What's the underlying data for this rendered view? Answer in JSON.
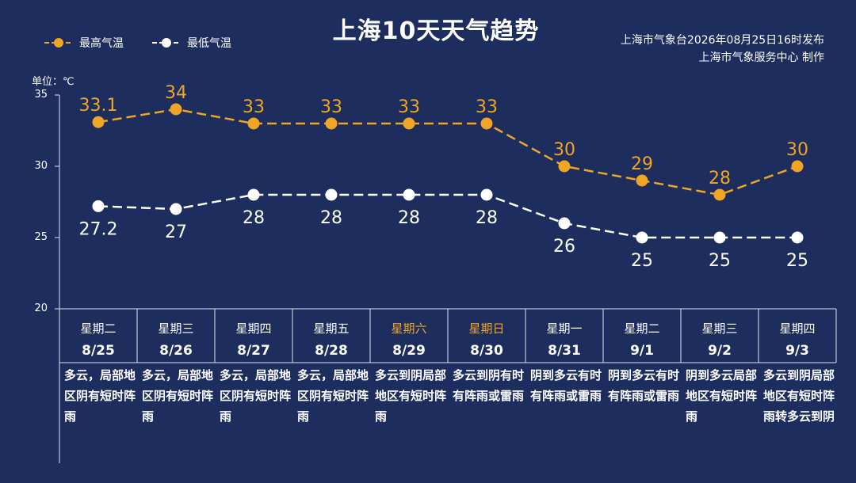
{
  "title": "上海10天天气趋势",
  "legend": {
    "high_label": "最高气温",
    "low_label": "最低气温"
  },
  "source": {
    "line1": "上海市气象台2026年08月25日16时发布",
    "line2": "上海市气象服务中心 制作"
  },
  "colors": {
    "background": "#1c2d5e",
    "high": "#f0a524",
    "low": "#ffffff",
    "weekend_text": "#f0a524"
  },
  "chart_data": {
    "type": "line",
    "unit_label": "单位：℃",
    "ylim": [
      20,
      35
    ],
    "yticks": [
      "35",
      "30",
      "25",
      "20"
    ],
    "categories": [
      "8/25",
      "8/26",
      "8/27",
      "8/28",
      "8/29",
      "8/30",
      "8/31",
      "9/1",
      "9/2",
      "9/3"
    ],
    "series": [
      {
        "name": "最高气温",
        "values": [
          33.1,
          34,
          33,
          33,
          33,
          33,
          30,
          29,
          28,
          30
        ],
        "labels": [
          "33.1",
          "34",
          "33",
          "33",
          "33",
          "33",
          "30",
          "29",
          "28",
          "30"
        ]
      },
      {
        "name": "最低气温",
        "values": [
          27.2,
          27,
          28,
          28,
          28,
          28,
          26,
          25,
          25,
          25
        ],
        "labels": [
          "27.2",
          "27",
          "28",
          "28",
          "28",
          "28",
          "26",
          "25",
          "25",
          "25"
        ]
      }
    ]
  },
  "days": [
    {
      "weekday": "星期二",
      "date": "8/25",
      "weather": "多云，局部地区阴有短时阵雨",
      "weekend": false
    },
    {
      "weekday": "星期三",
      "date": "8/26",
      "weather": "多云，局部地区阴有短时阵雨",
      "weekend": false
    },
    {
      "weekday": "星期四",
      "date": "8/27",
      "weather": "多云，局部地区阴有短时阵雨",
      "weekend": false
    },
    {
      "weekday": "星期五",
      "date": "8/28",
      "weather": "多云，局部地区阴有短时阵雨",
      "weekend": false
    },
    {
      "weekday": "星期六",
      "date": "8/29",
      "weather": "多云到阴局部地区有短时阵雨",
      "weekend": true
    },
    {
      "weekday": "星期日",
      "date": "8/30",
      "weather": "多云到阴有时有阵雨或雷雨",
      "weekend": true
    },
    {
      "weekday": "星期一",
      "date": "8/31",
      "weather": "阴到多云有时有阵雨或雷雨",
      "weekend": false
    },
    {
      "weekday": "星期二",
      "date": "9/1",
      "weather": "阴到多云有时有阵雨或雷雨",
      "weekend": false
    },
    {
      "weekday": "星期三",
      "date": "9/2",
      "weather": "阴到多云局部地区有短时阵雨",
      "weekend": false
    },
    {
      "weekday": "星期四",
      "date": "9/3",
      "weather": "多云到阴局部地区有短时阵雨转多云到阴",
      "weekend": false
    }
  ]
}
